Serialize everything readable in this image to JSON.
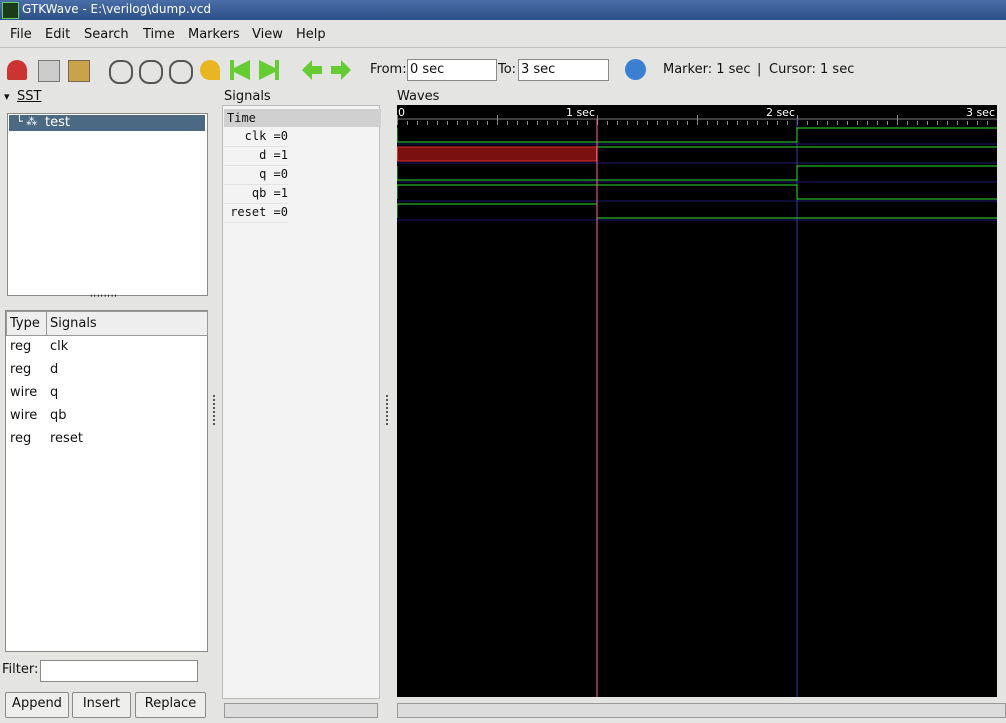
{
  "window": {
    "title": "GTKWave - E:\\verilog\\dump.vcd"
  },
  "menu": [
    "File",
    "Edit",
    "Search",
    "Time",
    "Markers",
    "View",
    "Help"
  ],
  "toolbar": {
    "from_label": "From:",
    "from_value": "0 sec",
    "to_label": "To:",
    "to_value": "3 sec",
    "marker": "Marker: 1 sec",
    "separator": "|",
    "cursor": "Cursor: 1 sec"
  },
  "sst": {
    "title": "SST",
    "tree": [
      "test"
    ],
    "columns": [
      "Type",
      "Signals"
    ],
    "rows": [
      [
        "reg",
        "clk"
      ],
      [
        "reg",
        "d"
      ],
      [
        "wire",
        "q"
      ],
      [
        "wire",
        "qb"
      ],
      [
        "reg",
        "reset"
      ]
    ],
    "filter_label": "Filter:",
    "buttons": [
      "Append",
      "Insert",
      "Replace"
    ]
  },
  "signals_pane": {
    "title": "Signals",
    "header": "Time",
    "items": [
      "clk =0",
      "d =1",
      "q =0",
      "qb =1",
      "reset =0"
    ]
  },
  "waves_pane": {
    "title": "Waves",
    "time_labels": [
      "0",
      "1 sec",
      "2 sec",
      "3 sec"
    ]
  }
}
